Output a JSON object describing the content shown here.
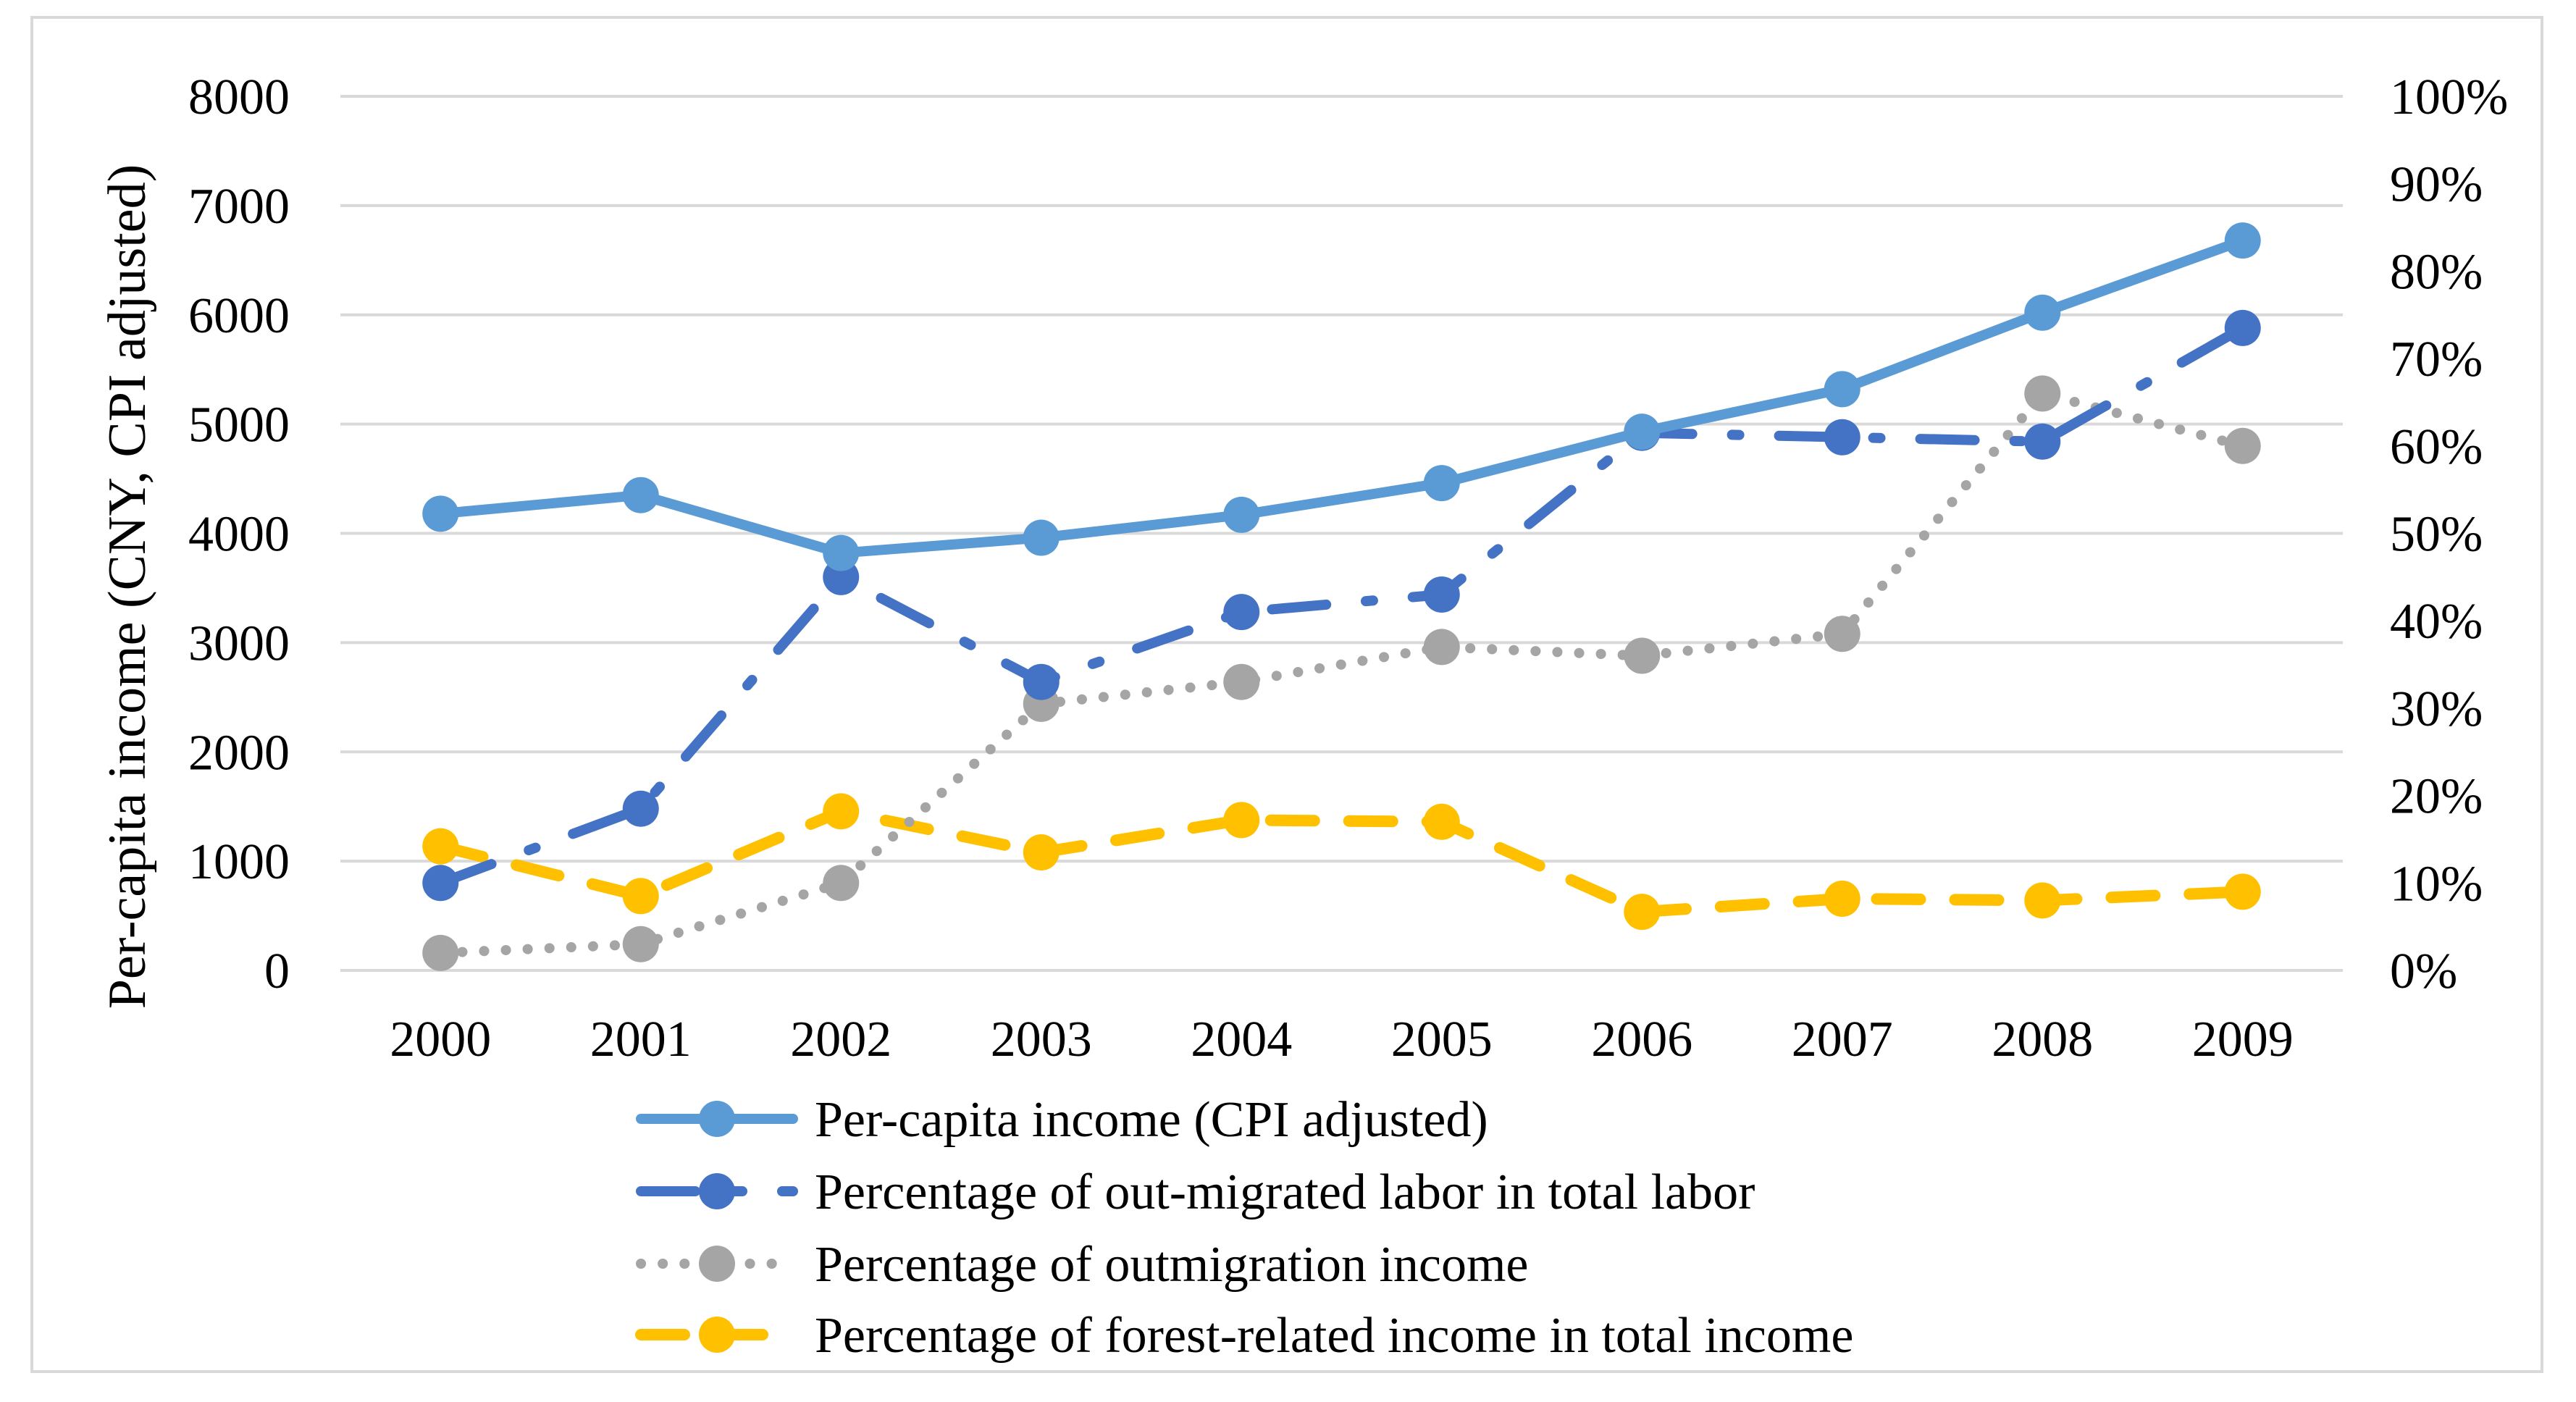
{
  "chart_data": {
    "type": "line",
    "categories": [
      "2000",
      "2001",
      "2002",
      "2003",
      "2004",
      "2005",
      "2006",
      "2007",
      "2008",
      "2009"
    ],
    "ylabel": "Per-capita income (CNY, CPI adjusted)",
    "y_left": {
      "min": 0,
      "max": 8000,
      "step": 1000,
      "tick_labels": [
        "0",
        "1000",
        "2000",
        "3000",
        "4000",
        "5000",
        "6000",
        "7000",
        "8000"
      ]
    },
    "y_right": {
      "min": 0,
      "max": 100,
      "step": 10,
      "tick_labels": [
        "0%",
        "10%",
        "20%",
        "30%",
        "40%",
        "50%",
        "60%",
        "70%",
        "80%",
        "90%",
        "100%"
      ]
    },
    "grid": true,
    "legend_position": "bottom",
    "series": [
      {
        "name": "Per-capita income (CPI adjusted)",
        "axis": "left",
        "style": "solid",
        "color": "#5B9BD5",
        "values": [
          4180,
          4350,
          3820,
          3960,
          4170,
          4460,
          4930,
          5320,
          6020,
          6680
        ]
      },
      {
        "name": "Percentage of out-migrated labor in total labor",
        "axis": "right",
        "style": "long-dash-dot",
        "color": "#4472C4",
        "values": [
          10,
          18.5,
          45,
          33,
          41,
          43,
          61.5,
          61,
          60.5,
          73.5
        ]
      },
      {
        "name": "Percentage of outmigration income",
        "axis": "right",
        "style": "dotted",
        "color": "#A5A5A5",
        "values": [
          2,
          3,
          10,
          30.5,
          33,
          37,
          36,
          38.5,
          66,
          60
        ]
      },
      {
        "name": "Percentage of forest-related income in total income",
        "axis": "right",
        "style": "dashed",
        "color": "#FFC000",
        "values": [
          14.2,
          8.5,
          18.2,
          13.5,
          17.2,
          17,
          6.7,
          8.2,
          8,
          9
        ]
      }
    ]
  }
}
